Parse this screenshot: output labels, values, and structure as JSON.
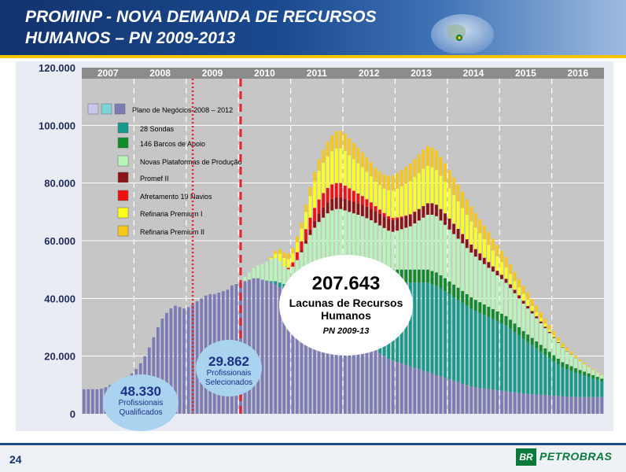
{
  "slide": {
    "title_line1": "PROMINP -  NOVA DEMANDA DE RECURSOS",
    "title_line2": "HUMANOS – PN 2009-2013",
    "page_number": "24",
    "logo_mark": "BR",
    "logo_text": "PETROBRAS"
  },
  "colors": {
    "plot_background": "#c6c6c6",
    "grid": "#ffffff",
    "header": "#1b4a8f",
    "accent_yellow": "#f3c400",
    "dashed_marker": "#e8202a"
  },
  "chart_data": {
    "type": "area",
    "stacked": true,
    "x_labels": [
      "2007",
      "2008",
      "2009",
      "2010",
      "2011",
      "2012",
      "2013",
      "2014",
      "2015",
      "2016"
    ],
    "x_points_per_year": 12,
    "y_ticks": [
      "120.000",
      "100.000",
      "80.000",
      "60.000",
      "40.000",
      "20.000",
      "0"
    ],
    "ylim": [
      0,
      120000
    ],
    "grid": true,
    "legend_position": "inside-top-left",
    "legend_group_label": "Plano de Negócios 2008 – 2012",
    "legend_group_colors": [
      "#c9c6ec",
      "#7dd4d6",
      "#7b7bb6"
    ],
    "series": [
      {
        "name": "28 Sondas",
        "color": "#149b8c",
        "values": [
          0,
          0,
          0,
          0,
          0,
          0,
          0,
          0,
          0,
          0,
          0,
          0,
          0,
          0,
          0,
          0,
          0,
          0,
          0,
          0,
          0,
          0,
          0,
          0,
          0,
          0,
          0,
          0,
          0,
          0,
          0,
          0,
          0,
          0,
          0,
          0,
          0,
          0,
          0,
          0,
          0,
          0,
          200,
          500,
          1000,
          1500,
          2000,
          2800,
          3500,
          4500,
          5500,
          7000,
          8500,
          10000,
          11500,
          13000,
          14500,
          15500,
          16500,
          17500,
          18500,
          19500,
          20500,
          21500,
          22500,
          23500,
          24500,
          25000,
          25500,
          26000,
          26500,
          27000,
          27500,
          28000,
          28500,
          29000,
          29500,
          30000,
          30500,
          31000,
          31000,
          31000,
          30500,
          30000,
          29500,
          29000,
          28500,
          28000,
          27500,
          27000,
          26500,
          26000,
          25500,
          25000,
          24500,
          24000,
          23500,
          23000,
          22000,
          21000,
          20000,
          19000,
          18000,
          17000,
          16000,
          15000,
          14000,
          13000,
          12000,
          11000,
          10000,
          9500,
          9000,
          8500,
          8000,
          7500,
          7000,
          6500,
          6000,
          5500
        ]
      },
      {
        "name": "146 Barcos de Apoio",
        "color": "#0f8c2a",
        "values": [
          0,
          0,
          0,
          0,
          0,
          0,
          0,
          0,
          0,
          0,
          0,
          0,
          0,
          0,
          0,
          0,
          0,
          0,
          0,
          0,
          0,
          0,
          0,
          0,
          0,
          0,
          0,
          0,
          0,
          0,
          0,
          0,
          0,
          0,
          0,
          0,
          0,
          0,
          0,
          0,
          0,
          0,
          0,
          0,
          0,
          0,
          0,
          300,
          1000,
          1800,
          2500,
          3000,
          3500,
          4000,
          4500,
          5000,
          5500,
          6000,
          6000,
          6000,
          6000,
          6000,
          6000,
          6000,
          6000,
          5800,
          5600,
          5400,
          5200,
          5000,
          4800,
          4600,
          4500,
          4500,
          4500,
          4500,
          4500,
          4500,
          4500,
          4500,
          4500,
          4500,
          4500,
          4500,
          4400,
          4300,
          4200,
          4100,
          4000,
          3900,
          3800,
          3700,
          3600,
          3500,
          3400,
          3300,
          3200,
          3100,
          3000,
          2900,
          2800,
          2700,
          2600,
          2500,
          2400,
          2300,
          2200,
          2100,
          2000,
          1900,
          1800,
          1700,
          1600,
          1500,
          1400,
          1300,
          1200,
          1100,
          1000,
          900
        ]
      },
      {
        "name": "Novas Plataformas de Produção",
        "color": "#b8f4b8",
        "values": [
          0,
          0,
          0,
          0,
          0,
          0,
          0,
          0,
          0,
          0,
          0,
          0,
          0,
          0,
          0,
          0,
          0,
          0,
          0,
          0,
          0,
          0,
          0,
          0,
          0,
          0,
          0,
          0,
          0,
          0,
          0,
          0,
          0,
          0,
          0,
          200,
          800,
          1500,
          2500,
          3500,
          4500,
          5500,
          6500,
          7500,
          8000,
          7500,
          6000,
          5000,
          5500,
          7000,
          9000,
          11000,
          13000,
          14500,
          15500,
          16000,
          16500,
          17000,
          17500,
          17500,
          17000,
          16500,
          16000,
          15500,
          15000,
          14500,
          14000,
          13800,
          13600,
          13400,
          13200,
          13000,
          13500,
          14000,
          14500,
          15000,
          16000,
          17000,
          18000,
          19000,
          19500,
          19500,
          19000,
          18500,
          18000,
          17500,
          17000,
          16500,
          16000,
          15500,
          15000,
          14500,
          14000,
          13500,
          13000,
          12500,
          12000,
          11500,
          11000,
          10500,
          10000,
          9500,
          9000,
          8500,
          8000,
          7500,
          7000,
          6500,
          6000,
          5500,
          5000,
          4500,
          4000,
          3500,
          3000,
          2600,
          2200,
          1800,
          1500,
          1200
        ]
      },
      {
        "name": "Promef II",
        "color": "#8a1414",
        "values": [
          0,
          0,
          0,
          0,
          0,
          0,
          0,
          0,
          0,
          0,
          0,
          0,
          0,
          0,
          0,
          0,
          0,
          0,
          0,
          0,
          0,
          0,
          0,
          0,
          0,
          0,
          0,
          0,
          0,
          0,
          0,
          0,
          0,
          0,
          0,
          0,
          0,
          0,
          0,
          0,
          0,
          0,
          0,
          0,
          0,
          0,
          0,
          0,
          0,
          200,
          600,
          1200,
          1800,
          2400,
          3000,
          3500,
          3800,
          4000,
          4000,
          4000,
          4000,
          4000,
          4000,
          4000,
          4000,
          4000,
          4000,
          4000,
          4000,
          4000,
          4000,
          4000,
          4000,
          4000,
          4000,
          4000,
          4000,
          4000,
          4000,
          4000,
          4000,
          4000,
          4000,
          4000,
          3800,
          3600,
          3400,
          3200,
          3000,
          2800,
          2600,
          2400,
          2200,
          2000,
          1800,
          1600,
          1500,
          1400,
          1300,
          1200,
          1100,
          1000,
          900,
          800,
          700,
          600,
          500,
          400,
          300,
          250,
          200,
          150,
          100,
          50,
          0,
          0,
          0,
          0,
          0,
          0
        ]
      },
      {
        "name": "Afretamento 19 Navios",
        "color": "#ee1111",
        "values": [
          0,
          0,
          0,
          0,
          0,
          0,
          0,
          0,
          0,
          0,
          0,
          0,
          0,
          0,
          0,
          0,
          0,
          0,
          0,
          0,
          0,
          0,
          0,
          0,
          0,
          0,
          0,
          0,
          0,
          0,
          0,
          0,
          0,
          0,
          0,
          0,
          0,
          0,
          0,
          0,
          0,
          0,
          0,
          0,
          0,
          0,
          0,
          500,
          1500,
          2500,
          3200,
          3800,
          4200,
          4500,
          4800,
          5000,
          5000,
          5000,
          5000,
          5000,
          4600,
          4200,
          3800,
          3400,
          3000,
          2600,
          2200,
          1800,
          1500,
          1200,
          1000,
          800,
          600,
          400,
          300,
          200,
          100,
          0,
          0,
          0,
          0,
          0,
          0,
          0,
          0,
          0,
          0,
          0,
          0,
          0,
          0,
          0,
          0,
          0,
          0,
          0,
          0,
          0,
          0,
          0,
          0,
          0,
          0,
          0,
          0,
          0,
          0,
          0,
          0,
          0,
          0,
          0,
          0,
          0,
          0,
          0,
          0,
          0,
          0,
          0
        ]
      },
      {
        "name": "Refinaria Premium I",
        "color": "#ffff1a",
        "values": [
          0,
          0,
          0,
          0,
          0,
          0,
          0,
          0,
          0,
          0,
          0,
          0,
          0,
          0,
          0,
          0,
          0,
          0,
          0,
          0,
          0,
          0,
          0,
          0,
          0,
          0,
          0,
          0,
          0,
          0,
          0,
          0,
          0,
          0,
          0,
          0,
          0,
          0,
          0,
          0,
          0,
          0,
          0,
          500,
          1500,
          2500,
          3000,
          3000,
          3000,
          3500,
          4500,
          6000,
          7500,
          9000,
          10000,
          10500,
          11000,
          11500,
          12000,
          12000,
          12000,
          11500,
          11000,
          10500,
          10000,
          9500,
          9000,
          8500,
          8500,
          8500,
          9000,
          9500,
          10000,
          10500,
          11000,
          11500,
          12000,
          12500,
          13000,
          13000,
          12500,
          12000,
          11500,
          11000,
          10500,
          10000,
          9500,
          9000,
          8500,
          8000,
          7500,
          7000,
          6500,
          6000,
          5500,
          5000,
          4500,
          4000,
          3500,
          3000,
          2700,
          2400,
          2100,
          1800,
          1500,
          1200,
          1000,
          800,
          600,
          500,
          400,
          300,
          200,
          100,
          0,
          0,
          0,
          0,
          0,
          0
        ]
      },
      {
        "name": "Refinaria Premium II",
        "color": "#f6c61a",
        "values": [
          0,
          0,
          0,
          0,
          0,
          0,
          0,
          0,
          0,
          0,
          0,
          0,
          0,
          0,
          0,
          0,
          0,
          0,
          0,
          0,
          0,
          0,
          0,
          0,
          0,
          0,
          0,
          0,
          0,
          0,
          0,
          0,
          0,
          0,
          0,
          0,
          0,
          0,
          0,
          0,
          0,
          0,
          0,
          500,
          1000,
          1500,
          2000,
          2000,
          2000,
          2000,
          2000,
          2500,
          3000,
          3500,
          4000,
          4500,
          5000,
          5500,
          6000,
          6000,
          6000,
          5800,
          5600,
          5400,
          5200,
          5000,
          4900,
          4800,
          4800,
          4800,
          5000,
          5200,
          5400,
          5600,
          5800,
          6000,
          6200,
          6400,
          6600,
          6800,
          6800,
          6800,
          6600,
          6400,
          6200,
          6000,
          5800,
          5600,
          5400,
          5200,
          5000,
          4800,
          4600,
          4400,
          4200,
          4000,
          3800,
          3600,
          3400,
          3200,
          3000,
          2800,
          2600,
          2400,
          2200,
          2000,
          1800,
          1600,
          1400,
          1200,
          1000,
          900,
          800,
          700,
          600,
          500,
          400,
          300,
          250,
          200
        ]
      },
      {
        "name": "Plano de Negócios 2008 – 2012",
        "color": "#7b7bb6",
        "values": [
          8500,
          8500,
          8500,
          8500,
          8700,
          9200,
          10000,
          10700,
          11300,
          12000,
          13000,
          14000,
          15500,
          17500,
          20000,
          23000,
          26500,
          30000,
          33000,
          35000,
          36500,
          37500,
          37000,
          36500,
          37000,
          38000,
          39000,
          40000,
          41000,
          41500,
          41500,
          42000,
          42500,
          43000,
          44500,
          45000,
          45500,
          46000,
          46500,
          47000,
          47000,
          46500,
          46000,
          45500,
          45000,
          44000,
          43000,
          42000,
          41000,
          40000,
          39000,
          38000,
          37000,
          36000,
          35000,
          34000,
          33000,
          32000,
          31000,
          30000,
          29000,
          28000,
          27000,
          26000,
          25000,
          24000,
          23000,
          22000,
          21000,
          20000,
          19000,
          18500,
          18000,
          17500,
          17000,
          16500,
          16000,
          15500,
          15000,
          14500,
          14000,
          13500,
          13000,
          12500,
          12000,
          11500,
          11000,
          10500,
          10000,
          9500,
          9200,
          9000,
          8800,
          8600,
          8400,
          8200,
          8000,
          7800,
          7600,
          7400,
          7200,
          7000,
          6900,
          6800,
          6700,
          6600,
          6500,
          6400,
          6300,
          6200,
          6100,
          6000,
          5900,
          5800,
          5800,
          5800,
          5800,
          5800,
          5800,
          5800
        ]
      }
    ],
    "vertical_markers": [
      {
        "label": "",
        "style": "dotted",
        "at_index": 25.5
      },
      {
        "label": "",
        "style": "dashed",
        "at_index": 36.5
      }
    ],
    "annotations": {
      "big_ellipse": {
        "value": "207.643",
        "line1": "Lacunas de Recursos",
        "line2": "Humanos",
        "line3": "PN 2009-13"
      },
      "mid_bubble": {
        "value": "29.862",
        "line1": "Profissionais",
        "line2": "Selecionados"
      },
      "left_bubble": {
        "value": "48.330",
        "line1": "Profissionais",
        "line2": "Qualificados"
      }
    }
  }
}
